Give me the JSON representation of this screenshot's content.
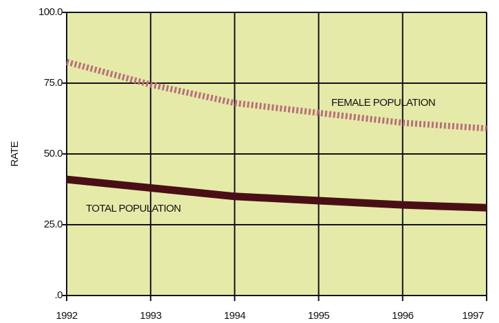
{
  "chart_data": {
    "type": "line",
    "ylabel": "RATE",
    "x": [
      1992,
      1993,
      1994,
      1995,
      1996,
      1997
    ],
    "xlim": [
      1992,
      1997
    ],
    "xticks": [
      1992,
      1993,
      1994,
      1995,
      1996,
      1997
    ],
    "ylim": [
      0,
      100
    ],
    "yticks": [
      {
        "value": 0,
        "label": ".0"
      },
      {
        "value": 25,
        "label": "25.0"
      },
      {
        "value": 50,
        "label": "50.0"
      },
      {
        "value": 75,
        "label": "75.0"
      },
      {
        "value": 100,
        "label": "100.0"
      }
    ],
    "grid": true,
    "series": [
      {
        "name": "FEMALE POPULATION",
        "color": "#b8707c",
        "style": "dotted",
        "values": [
          82.5,
          74.5,
          68,
          64.5,
          61,
          59
        ]
      },
      {
        "name": "TOTAL POPULATION",
        "color": "#4a0f16",
        "style": "solid",
        "values": [
          41,
          38,
          35,
          33.5,
          32,
          31
        ]
      }
    ]
  }
}
